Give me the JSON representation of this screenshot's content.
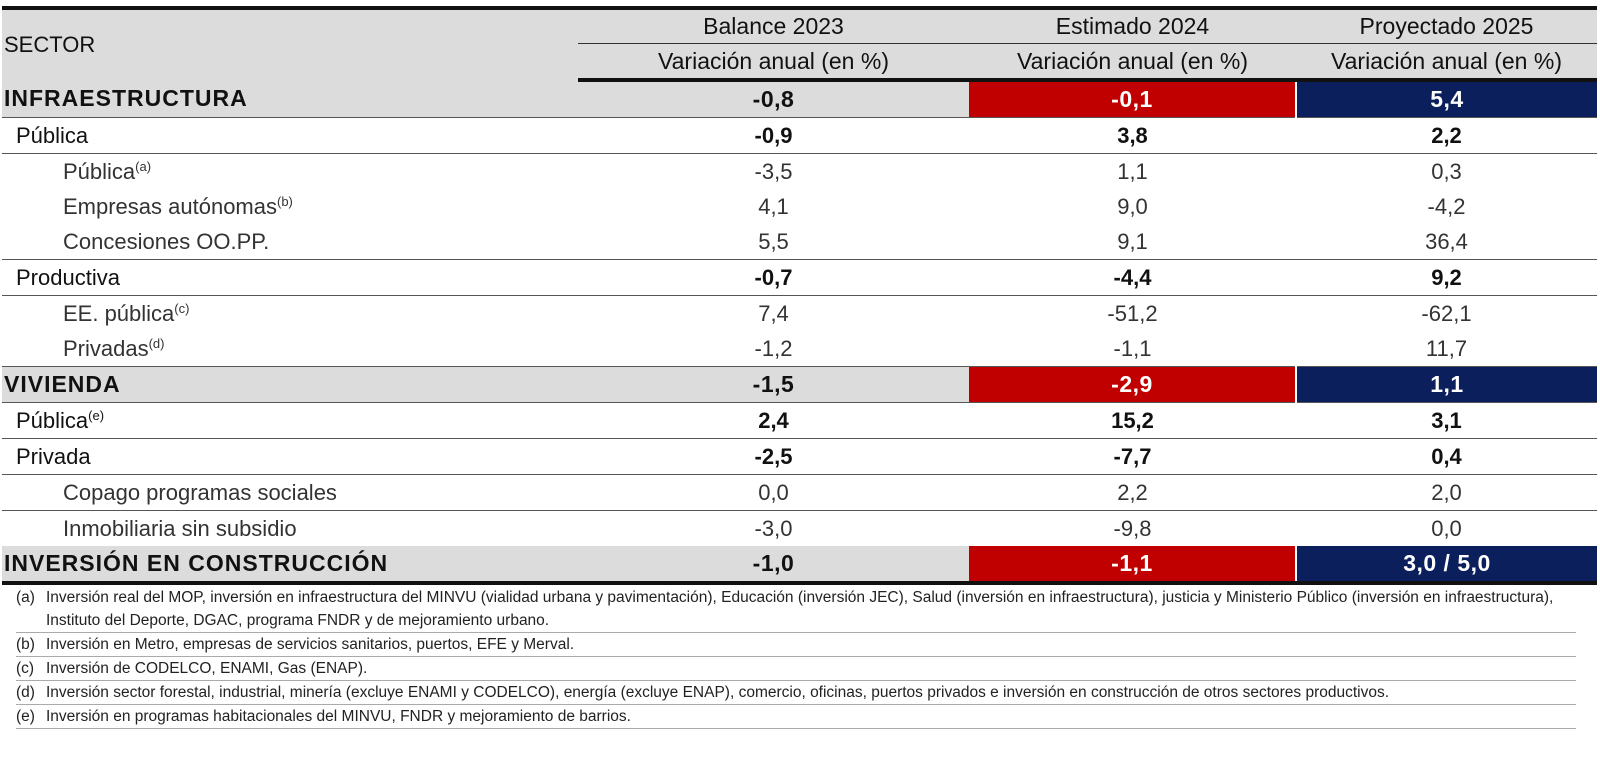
{
  "header": {
    "sector": "SECTOR",
    "years": [
      "Balance 2023",
      "Estimado 2024",
      "Proyectado 2025"
    ],
    "subhead": "Variación anual (en %)"
  },
  "rows": [
    {
      "label": "INFRAESTRUCTURA",
      "sup": "",
      "values": [
        "-0,8",
        "-0,1",
        "5,4"
      ]
    },
    {
      "label": "Pública",
      "sup": "",
      "values": [
        "-0,9",
        "3,8",
        "2,2"
      ]
    },
    {
      "label": "Pública",
      "sup": "(a)",
      "values": [
        "-3,5",
        "1,1",
        "0,3"
      ]
    },
    {
      "label": "Empresas autónomas",
      "sup": "(b)",
      "values": [
        "4,1",
        "9,0",
        "-4,2"
      ]
    },
    {
      "label": "Concesiones OO.PP.",
      "sup": "",
      "values": [
        "5,5",
        "9,1",
        "36,4"
      ]
    },
    {
      "label": "Productiva",
      "sup": "",
      "values": [
        "-0,7",
        "-4,4",
        "9,2"
      ]
    },
    {
      "label": "EE. pública",
      "sup": "(c)",
      "values": [
        "7,4",
        "-51,2",
        "-62,1"
      ]
    },
    {
      "label": "Privadas",
      "sup": "(d)",
      "values": [
        "-1,2",
        "-1,1",
        "11,7"
      ]
    },
    {
      "label": "VIVIENDA",
      "sup": "",
      "values": [
        "-1,5",
        "-2,9",
        "1,1"
      ]
    },
    {
      "label": "Pública",
      "sup": "(e)",
      "values": [
        "2,4",
        "15,2",
        "3,1"
      ]
    },
    {
      "label": "Privada",
      "sup": "",
      "values": [
        "-2,5",
        "-7,7",
        "0,4"
      ]
    },
    {
      "label": "Copago programas sociales",
      "sup": "",
      "values": [
        "0,0",
        "2,2",
        "2,0"
      ]
    },
    {
      "label": "Inmobiliaria sin subsidio",
      "sup": "",
      "values": [
        "-3,0",
        "-9,8",
        "0,0"
      ]
    },
    {
      "label": "INVERSIÓN EN CONSTRUCCIÓN",
      "sup": "",
      "values": [
        "-1,0",
        "-1,1",
        "3,0 / 5,0"
      ]
    }
  ],
  "notes": [
    {
      "key": "(a)",
      "text": "Inversión real del MOP, inversión en infraestructura del MINVU (vialidad urbana y pavimentación), Educación (inversión JEC), Salud (inversión en infraestructura), justicia y Ministerio Público (inversión en infraestructura), Instituto del Deporte, DGAC, programa FNDR y de mejoramiento urbano."
    },
    {
      "key": "(b)",
      "text": "Inversión en Metro, empresas de servicios sanitarios, puertos, EFE y Merval."
    },
    {
      "key": "(c)",
      "text": "Inversión de CODELCO, ENAMI, Gas (ENAP)."
    },
    {
      "key": "(d)",
      "text": "Inversión sector forestal, industrial, minería (excluye ENAMI y CODELCO), energía (excluye ENAP), comercio, oficinas, puertos privados e inversión en construcción de otros sectores productivos."
    },
    {
      "key": "(e)",
      "text": "Inversión en programas habitacionales del MINVU, FNDR y mejoramiento de barrios."
    }
  ],
  "colors": {
    "highlight_2024": "#c00000",
    "highlight_2025": "#0a1f5c",
    "header_bg": "#dcdcdc"
  }
}
